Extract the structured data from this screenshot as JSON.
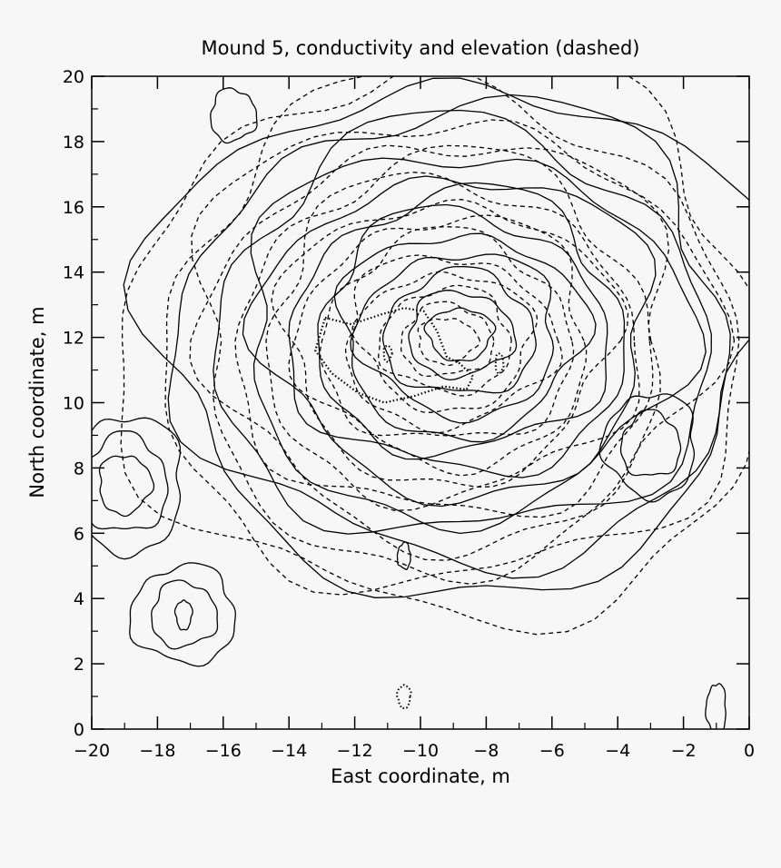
{
  "chart_data": {
    "type": "contour",
    "title": "Mound 5, conductivity and elevation (dashed)",
    "xlabel": "East coordinate, m",
    "ylabel": "North coordinate, m",
    "xlim": [
      -20,
      0
    ],
    "ylim": [
      0,
      20
    ],
    "x_ticks": [
      -20,
      -18,
      -16,
      -14,
      -12,
      -10,
      -8,
      -6,
      -4,
      -2,
      0
    ],
    "x_tick_labels": [
      "−20",
      "−18",
      "−16",
      "−14",
      "−12",
      "−10",
      "−8",
      "−6",
      "−4",
      "−2",
      "0"
    ],
    "y_ticks": [
      0,
      2,
      4,
      6,
      8,
      10,
      12,
      14,
      16,
      18,
      20
    ],
    "y_tick_labels": [
      "0",
      "2",
      "4",
      "6",
      "8",
      "10",
      "12",
      "14",
      "16",
      "18",
      "20"
    ],
    "grid": false,
    "series": [
      {
        "name": "conductivity",
        "style": "solid",
        "center": [
          -8.8,
          12.1
        ],
        "rings": [
          [
            1.0,
            0.8
          ],
          [
            1.6,
            1.3
          ],
          [
            2.3,
            1.9
          ],
          [
            3.0,
            2.5
          ],
          [
            3.7,
            3.1
          ],
          [
            4.4,
            3.7
          ],
          [
            5.1,
            4.3
          ],
          [
            5.9,
            4.9
          ],
          [
            6.7,
            5.6
          ],
          [
            7.5,
            6.3
          ],
          [
            8.4,
            7.0
          ],
          [
            9.3,
            7.8
          ]
        ]
      },
      {
        "name": "elevation",
        "style": "dashed",
        "center": [
          -9.2,
          11.9
        ],
        "rings": [
          [
            0.9,
            0.7
          ],
          [
            1.4,
            1.1
          ],
          [
            2.0,
            1.6
          ],
          [
            2.6,
            2.1
          ],
          [
            3.2,
            2.6
          ],
          [
            3.8,
            3.2
          ],
          [
            4.4,
            3.8
          ],
          [
            5.0,
            4.3
          ],
          [
            5.6,
            4.9
          ],
          [
            6.3,
            5.5
          ],
          [
            7.0,
            6.2
          ],
          [
            7.8,
            6.9
          ],
          [
            8.7,
            7.7
          ],
          [
            9.7,
            8.6
          ]
        ]
      }
    ],
    "local_features": [
      {
        "kind": "solid",
        "center": [
          -17.2,
          3.5
        ],
        "rings": [
          [
            0.25,
            0.45
          ],
          [
            1.0,
            1.0
          ],
          [
            1.6,
            1.5
          ]
        ]
      },
      {
        "kind": "solid",
        "center": [
          -19.0,
          7.5
        ],
        "rings": [
          [
            0.8,
            0.9
          ],
          [
            1.3,
            1.5
          ],
          [
            1.8,
            2.1
          ]
        ]
      },
      {
        "kind": "solid",
        "center": [
          -15.7,
          18.8
        ],
        "rings": [
          [
            0.7,
            0.8
          ]
        ]
      },
      {
        "kind": "solid",
        "center": [
          -3.0,
          8.7
        ],
        "rings": [
          [
            0.9,
            1.0
          ],
          [
            1.4,
            1.6
          ]
        ]
      },
      {
        "kind": "solid",
        "center": [
          -10.5,
          5.3
        ],
        "rings": [
          [
            0.2,
            0.4
          ]
        ]
      },
      {
        "kind": "solid",
        "center": [
          -1.0,
          0.6
        ],
        "rings": [
          [
            0.3,
            0.8
          ]
        ]
      },
      {
        "kind": "dotted",
        "center": [
          -10.5,
          1.0
        ],
        "rings": [
          [
            0.2,
            0.35
          ]
        ]
      },
      {
        "kind": "dotted",
        "center": [
          -11.0,
          11.5
        ],
        "rings": [
          [
            0.12,
            0.25
          ]
        ]
      },
      {
        "kind": "dotted",
        "center": [
          -7.6,
          11.2
        ],
        "rings": [
          [
            0.12,
            0.3
          ]
        ]
      }
    ],
    "dotted_region": [
      [
        -12.9,
        12.6
      ],
      [
        -12.1,
        12.4
      ],
      [
        -11.2,
        12.7
      ],
      [
        -10.5,
        12.9
      ],
      [
        -9.9,
        12.8
      ],
      [
        -9.5,
        12.2
      ],
      [
        -9.2,
        11.4
      ],
      [
        -8.8,
        11.2
      ],
      [
        -8.4,
        10.8
      ],
      [
        -8.6,
        10.4
      ],
      [
        -9.3,
        10.5
      ],
      [
        -10.2,
        10.2
      ],
      [
        -11.1,
        10.0
      ],
      [
        -11.9,
        10.3
      ],
      [
        -12.7,
        10.9
      ],
      [
        -13.2,
        11.6
      ]
    ]
  }
}
